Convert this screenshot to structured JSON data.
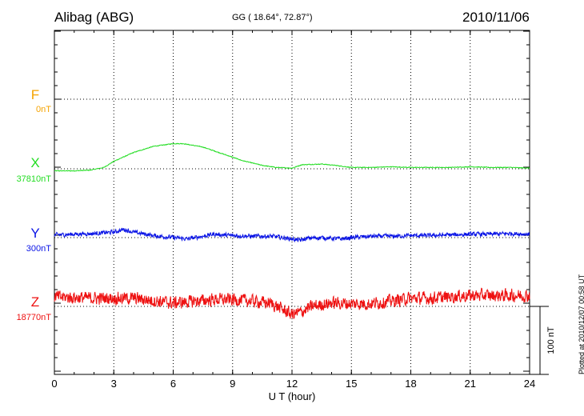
{
  "header": {
    "station": "Alibag (ABG)",
    "coords": "GG ( 18.64°,  72.87°)",
    "date": "2010/11/06"
  },
  "footer": {
    "plotted": "Plotted at 2010/12/07 00:58 UT"
  },
  "chart_data": {
    "type": "line",
    "title": "Alibag (ABG) 2010/11/06",
    "xlabel": "U T (hour)",
    "xlim": [
      0,
      24
    ],
    "xticks": [
      "0",
      "3",
      "6",
      "9",
      "12",
      "15",
      "18",
      "21",
      "24"
    ],
    "scale_bar_label": "100 nT",
    "scale_bar_value_nT": 100,
    "channels": [
      {
        "key": "F",
        "letter": "F",
        "baseline_label": "0nT",
        "color": "#f5a300",
        "x": [],
        "y": []
      },
      {
        "key": "X",
        "letter": "X",
        "baseline_label": "37810nT",
        "color": "#22dd22",
        "x": [
          0,
          1,
          1.8,
          2.5,
          3,
          4,
          5,
          6,
          6.5,
          7.5,
          8.5,
          9.5,
          10.5,
          11.2,
          12,
          12.5,
          13.5,
          14.2,
          15,
          16,
          17,
          18,
          19,
          20,
          21,
          22,
          23,
          24
        ],
        "y": [
          -3,
          -3,
          -2,
          2,
          11,
          24,
          33,
          37,
          37,
          32,
          22,
          12,
          5,
          2,
          1,
          6,
          7,
          5,
          2,
          2,
          3,
          2,
          2,
          2,
          3,
          2,
          2,
          1
        ],
        "noise": 0.7
      },
      {
        "key": "Y",
        "letter": "Y",
        "baseline_label": "300nT",
        "color": "#0a14e6",
        "x": [
          0,
          1,
          2,
          3,
          3.5,
          4,
          5,
          6,
          6.7,
          7.5,
          8,
          9,
          10,
          11,
          11.5,
          12,
          12.4,
          12.8,
          13.5,
          14.5,
          15,
          16,
          17,
          18,
          19,
          20,
          21,
          22,
          23,
          24
        ],
        "y": [
          4,
          5,
          6,
          8,
          12,
          8,
          3,
          0,
          -2,
          2,
          5,
          3,
          2,
          2,
          0,
          -2,
          -4,
          -1,
          0,
          -2,
          0,
          2,
          2,
          3,
          3,
          4,
          5,
          5,
          6,
          5
        ],
        "noise": 4
      },
      {
        "key": "Z",
        "letter": "Z",
        "baseline_label": "18770nT",
        "color": "#ee1111",
        "x": [
          0,
          2,
          4,
          6,
          8,
          9,
          10,
          11,
          11.5,
          12,
          12.5,
          13,
          14,
          15,
          16,
          17,
          18,
          19,
          20,
          21,
          22,
          23,
          24
        ],
        "y": [
          14,
          12,
          12,
          5,
          10,
          10,
          8,
          4,
          -4,
          -12,
          -8,
          0,
          5,
          4,
          4,
          8,
          12,
          12,
          14,
          16,
          16,
          16,
          16
        ],
        "noise": 12
      }
    ]
  }
}
